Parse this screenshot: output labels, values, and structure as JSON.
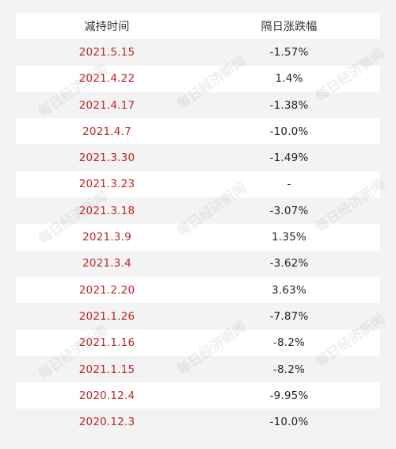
{
  "table": {
    "headers": [
      "减持时间",
      "隔日涨跌幅"
    ],
    "rows": [
      {
        "date": "2021.5.15",
        "change": "-1.57%"
      },
      {
        "date": "2021.4.22",
        "change": "1.4%"
      },
      {
        "date": "2021.4.17",
        "change": "-1.38%"
      },
      {
        "date": "2021.4.7",
        "change": "-10.0%"
      },
      {
        "date": "2021.3.30",
        "change": "-1.49%"
      },
      {
        "date": "2021.3.23",
        "change": "-"
      },
      {
        "date": "2021.3.18",
        "change": "-3.07%"
      },
      {
        "date": "2021.3.9",
        "change": "1.35%"
      },
      {
        "date": "2021.3.4",
        "change": "-3.62%"
      },
      {
        "date": "2021.2.20",
        "change": "3.63%"
      },
      {
        "date": "2021.1.26",
        "change": "-7.87%"
      },
      {
        "date": "2021.1.16",
        "change": "-8.2%"
      },
      {
        "date": "2021.1.15",
        "change": "-8.2%"
      },
      {
        "date": "2020.12.4",
        "change": "-9.95%"
      },
      {
        "date": "2020.12.3",
        "change": "-10.0%"
      }
    ]
  },
  "watermark": "每日经济新闻",
  "colors": {
    "date_text": "#c0262d",
    "row_alt": "#f3f3f3",
    "row_white": "#ffffff"
  }
}
